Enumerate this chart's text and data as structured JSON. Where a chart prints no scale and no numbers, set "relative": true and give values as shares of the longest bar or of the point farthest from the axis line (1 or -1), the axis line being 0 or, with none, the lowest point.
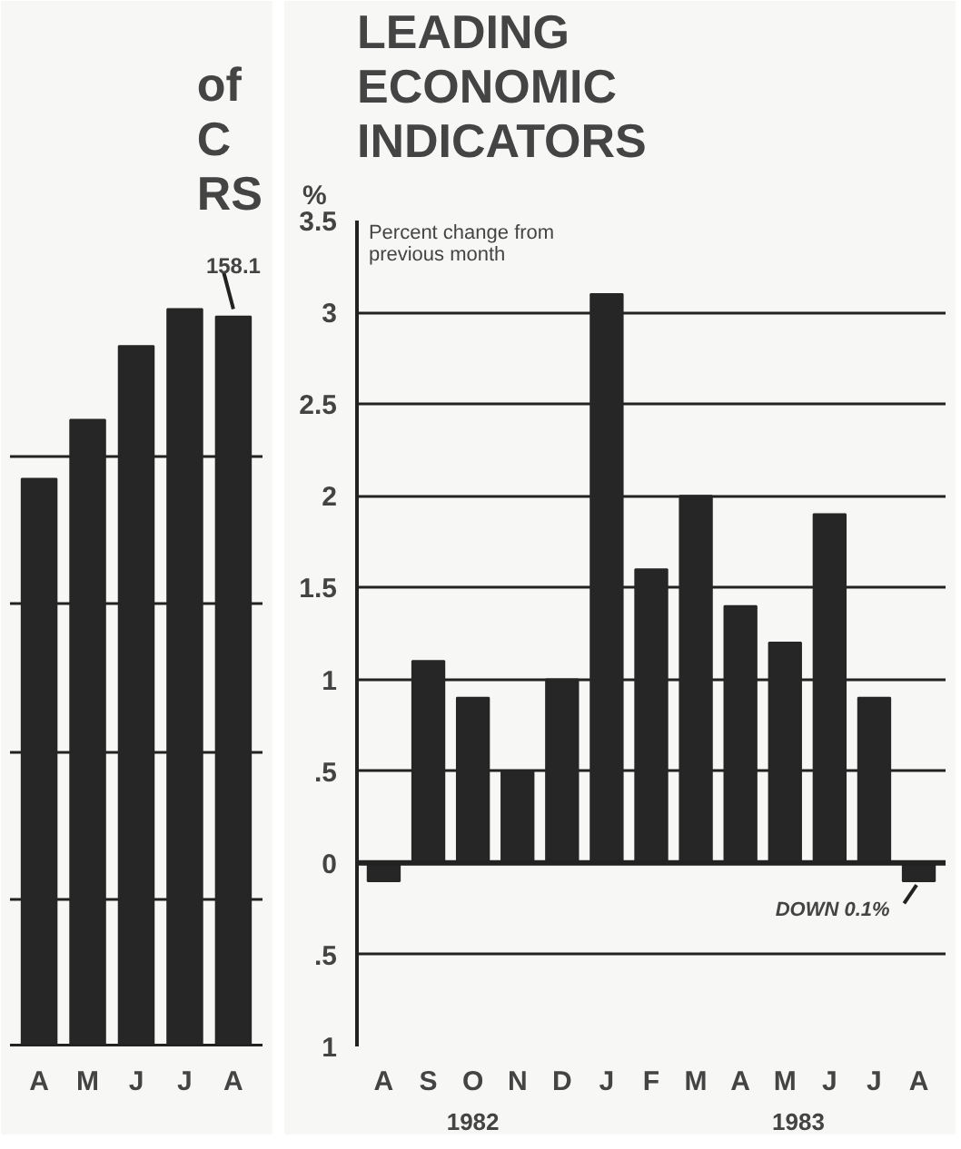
{
  "chart_data": [
    {
      "type": "bar",
      "relative": true,
      "title": "of\nC\nRS",
      "categories": [
        "A",
        "M",
        "J",
        "J",
        "A"
      ],
      "values": [
        0.77,
        0.85,
        0.95,
        1.0,
        0.99
      ],
      "annotations": [
        "158.1"
      ],
      "color": "#262626",
      "grid": "y",
      "tick_labels": "x"
    },
    {
      "type": "bar",
      "title": "LEADING\nECONOMIC\nINDICATORS",
      "subtitle": "Percent change from\nprevious month",
      "ylabel": "%",
      "categories": [
        "A",
        "S",
        "O",
        "N",
        "D",
        "J",
        "F",
        "M",
        "A",
        "M",
        "J",
        "J",
        "A"
      ],
      "values": [
        -0.1,
        1.1,
        0.9,
        0.5,
        1.0,
        3.1,
        1.6,
        2.0,
        1.4,
        1.2,
        1.9,
        0.9,
        -0.1
      ],
      "color": "#262626",
      "ylim": [
        -1,
        3.5
      ],
      "yticks": [
        {
          "value": -1,
          "label": "1"
        },
        {
          "value": -0.5,
          "label": ".5"
        },
        0,
        {
          "value": 0.5,
          "label": ".5"
        },
        1,
        1.5,
        2,
        2.5,
        3,
        3.5
      ],
      "grid": "y",
      "annotations": [
        "1982",
        "1983",
        "DOWN 0.1%"
      ]
    }
  ]
}
